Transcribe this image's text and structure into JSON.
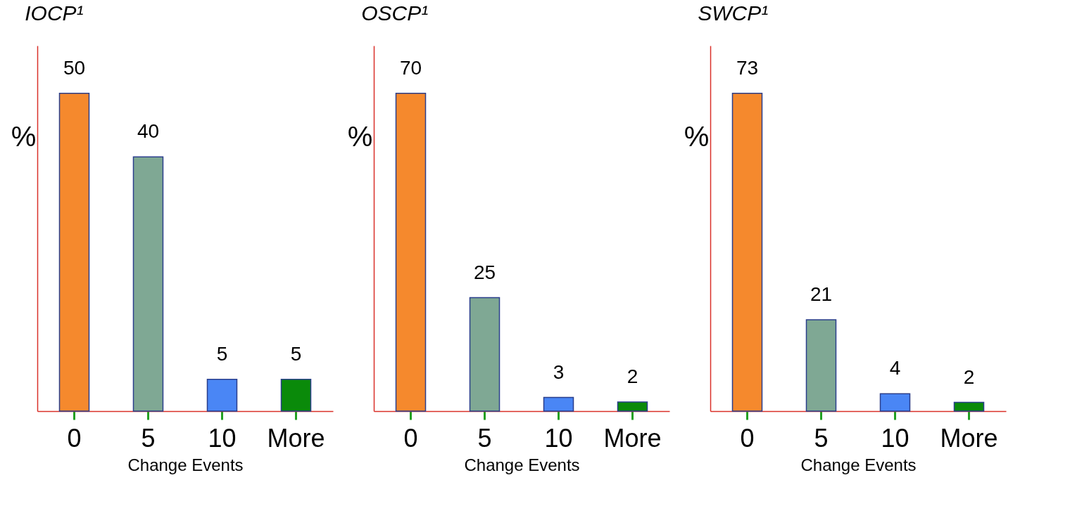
{
  "chart_data": [
    {
      "type": "bar",
      "title": "IOCP¹",
      "ylabel": "%",
      "xlabel": "Change Events",
      "categories": [
        "0",
        "5",
        "10",
        "More"
      ],
      "values": [
        50,
        40,
        5,
        5
      ],
      "colors": [
        "#f5892d",
        "#7fa894",
        "#4a86f5",
        "#0a8a0a"
      ],
      "data_labels": true,
      "tick_labels": "x",
      "grid": false,
      "legend": false
    },
    {
      "type": "bar",
      "title": "OSCP¹",
      "ylabel": "%",
      "xlabel": "Change Events",
      "categories": [
        "0",
        "5",
        "10",
        "More"
      ],
      "values": [
        70,
        25,
        3,
        2
      ],
      "colors": [
        "#f5892d",
        "#7fa894",
        "#4a86f5",
        "#0a8a0a"
      ],
      "data_labels": true,
      "tick_labels": "x",
      "grid": false,
      "legend": false
    },
    {
      "type": "bar",
      "title": "SWCP¹",
      "ylabel": "%",
      "xlabel": "Change Events",
      "categories": [
        "0",
        "5",
        "10",
        "More"
      ],
      "values": [
        73,
        21,
        4,
        2
      ],
      "colors": [
        "#f5892d",
        "#7fa894",
        "#4a86f5",
        "#0a8a0a"
      ],
      "data_labels": true,
      "tick_labels": "x",
      "grid": false,
      "legend": false
    }
  ]
}
